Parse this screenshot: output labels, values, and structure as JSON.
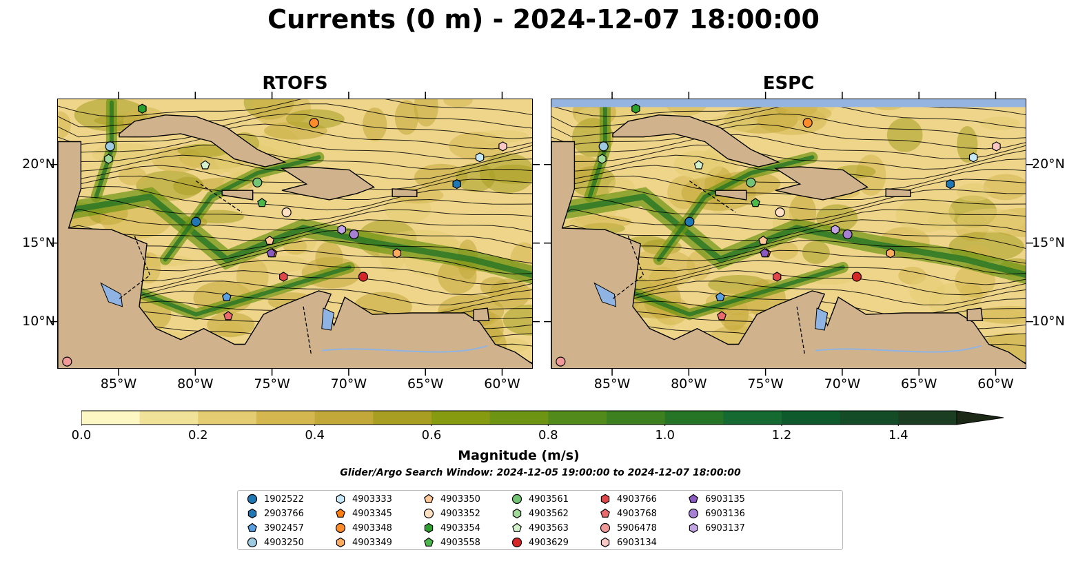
{
  "title": "Currents (0 m) - 2024-12-07 18:00:00",
  "panels": [
    {
      "title": "RTOFS"
    },
    {
      "title": "ESPC"
    }
  ],
  "lon_ticks": [
    "85°W",
    "80°W",
    "75°W",
    "70°W",
    "65°W",
    "60°W"
  ],
  "lat_ticks": [
    "20°N",
    "15°N",
    "10°N"
  ],
  "map_extent": {
    "lon": [
      -89,
      -58
    ],
    "lat": [
      7,
      24.2
    ]
  },
  "colorbar": {
    "label": "Magnitude (m/s)",
    "ticks": [
      "0.0",
      "0.2",
      "0.4",
      "0.6",
      "0.8",
      "1.0",
      "1.2",
      "1.4"
    ],
    "range": [
      0,
      1.5
    ],
    "step": 0.1,
    "extend": "max",
    "colors": [
      "#fdf7c3",
      "#f1e29a",
      "#e3cc72",
      "#d4b74f",
      "#c2a838",
      "#a79e22",
      "#879b10",
      "#6e9414",
      "#528b1b",
      "#3c8020",
      "#267426",
      "#146a30",
      "#0e5a2c",
      "#154c28",
      "#1b3d22"
    ]
  },
  "search_window": "Glider/Argo Search Window: 2024-12-05 19:00:00 to 2024-12-07 18:00:00",
  "legend": [
    {
      "id": "1902522",
      "color": "#1f77b4",
      "marker": "circle"
    },
    {
      "id": "2903766",
      "color": "#1f77b4",
      "marker": "hexagon"
    },
    {
      "id": "3902457",
      "color": "#5aa0e0",
      "marker": "pentagon"
    },
    {
      "id": "4903250",
      "color": "#9ecae1",
      "marker": "circle"
    },
    {
      "id": "4903333",
      "color": "#c6e9f7",
      "marker": "hexagon"
    },
    {
      "id": "4903345",
      "color": "#ff7f0e",
      "marker": "pentagon"
    },
    {
      "id": "4903348",
      "color": "#ff8c2a",
      "marker": "circle"
    },
    {
      "id": "4903349",
      "color": "#ffab5e",
      "marker": "hexagon"
    },
    {
      "id": "4903350",
      "color": "#ffc897",
      "marker": "pentagon"
    },
    {
      "id": "4903352",
      "color": "#ffe0c2",
      "marker": "circle"
    },
    {
      "id": "4903354",
      "color": "#2ca02c",
      "marker": "hexagon"
    },
    {
      "id": "4903558",
      "color": "#4cb84c",
      "marker": "pentagon"
    },
    {
      "id": "4903561",
      "color": "#74c476",
      "marker": "circle"
    },
    {
      "id": "4903562",
      "color": "#a1d99b",
      "marker": "hexagon"
    },
    {
      "id": "4903563",
      "color": "#d3f2cc",
      "marker": "pentagon"
    },
    {
      "id": "4903629",
      "color": "#d62728",
      "marker": "circle"
    },
    {
      "id": "4903766",
      "color": "#e0474a",
      "marker": "hexagon"
    },
    {
      "id": "4903768",
      "color": "#eb6b6d",
      "marker": "pentagon"
    },
    {
      "id": "5906478",
      "color": "#f29a9a",
      "marker": "circle"
    },
    {
      "id": "6903134",
      "color": "#f9c8c4",
      "marker": "hexagon"
    },
    {
      "id": "6903135",
      "color": "#8a5bbf",
      "marker": "pentagon"
    },
    {
      "id": "6903136",
      "color": "#a680d3",
      "marker": "circle"
    },
    {
      "id": "6903137",
      "color": "#c2a4e4",
      "marker": "hexagon"
    }
  ],
  "floats": [
    {
      "id": "1902522",
      "lon": -80.0,
      "lat": 16.4
    },
    {
      "id": "2903766",
      "lon": -63.0,
      "lat": 18.8
    },
    {
      "id": "3902457",
      "lon": -78.0,
      "lat": 11.6
    },
    {
      "id": "4903250",
      "lon": -85.6,
      "lat": 21.2
    },
    {
      "id": "4903333",
      "lon": -61.5,
      "lat": 20.5
    },
    {
      "id": "4903345",
      "lon": -75.0,
      "lat": 14.4
    },
    {
      "id": "4903348",
      "lon": -72.3,
      "lat": 22.7
    },
    {
      "id": "4903349",
      "lon": -66.9,
      "lat": 14.4
    },
    {
      "id": "4903350",
      "lon": -75.2,
      "lat": 15.2
    },
    {
      "id": "4903352",
      "lon": -74.1,
      "lat": 17.0
    },
    {
      "id": "4903354",
      "lon": -83.5,
      "lat": 23.6
    },
    {
      "id": "4903558",
      "lon": -75.7,
      "lat": 17.6
    },
    {
      "id": "4903561",
      "lon": -76.0,
      "lat": 18.9
    },
    {
      "id": "4903562",
      "lon": -85.7,
      "lat": 20.4
    },
    {
      "id": "4903563",
      "lon": -79.4,
      "lat": 20.0
    },
    {
      "id": "4903629",
      "lon": -69.1,
      "lat": 12.9
    },
    {
      "id": "4903766",
      "lon": -74.3,
      "lat": 12.9
    },
    {
      "id": "4903768",
      "lon": -77.9,
      "lat": 10.4
    },
    {
      "id": "5906478",
      "lon": -88.4,
      "lat": 7.5
    },
    {
      "id": "6903134",
      "lon": -60.0,
      "lat": 21.2
    },
    {
      "id": "6903135",
      "lon": -75.1,
      "lat": 14.4
    },
    {
      "id": "6903136",
      "lon": -69.7,
      "lat": 15.6
    },
    {
      "id": "6903137",
      "lon": -70.5,
      "lat": 15.9
    }
  ]
}
